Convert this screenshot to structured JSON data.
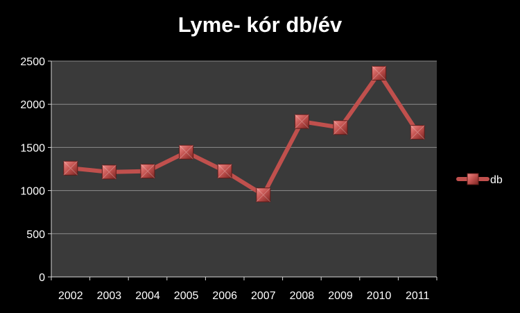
{
  "chart_data": {
    "type": "line",
    "title": "Lyme- kór db/év",
    "xlabel": "",
    "ylabel": "",
    "categories": [
      "2002",
      "2003",
      "2004",
      "2005",
      "2006",
      "2007",
      "2008",
      "2009",
      "2010",
      "2011"
    ],
    "series": [
      {
        "name": "db",
        "values": [
          1260,
          1215,
          1225,
          1445,
          1225,
          950,
          1800,
          1730,
          2360,
          1675
        ]
      }
    ],
    "ylim": [
      0,
      2500
    ],
    "yticks": [
      "0",
      "500",
      "1000",
      "1500",
      "2000",
      "2500"
    ],
    "grid": true,
    "legend": "right",
    "colors": {
      "background": "#000000",
      "plot_area": "#3a3a3a",
      "gridline": "#8c8c8c",
      "series": "#c0504d"
    }
  }
}
